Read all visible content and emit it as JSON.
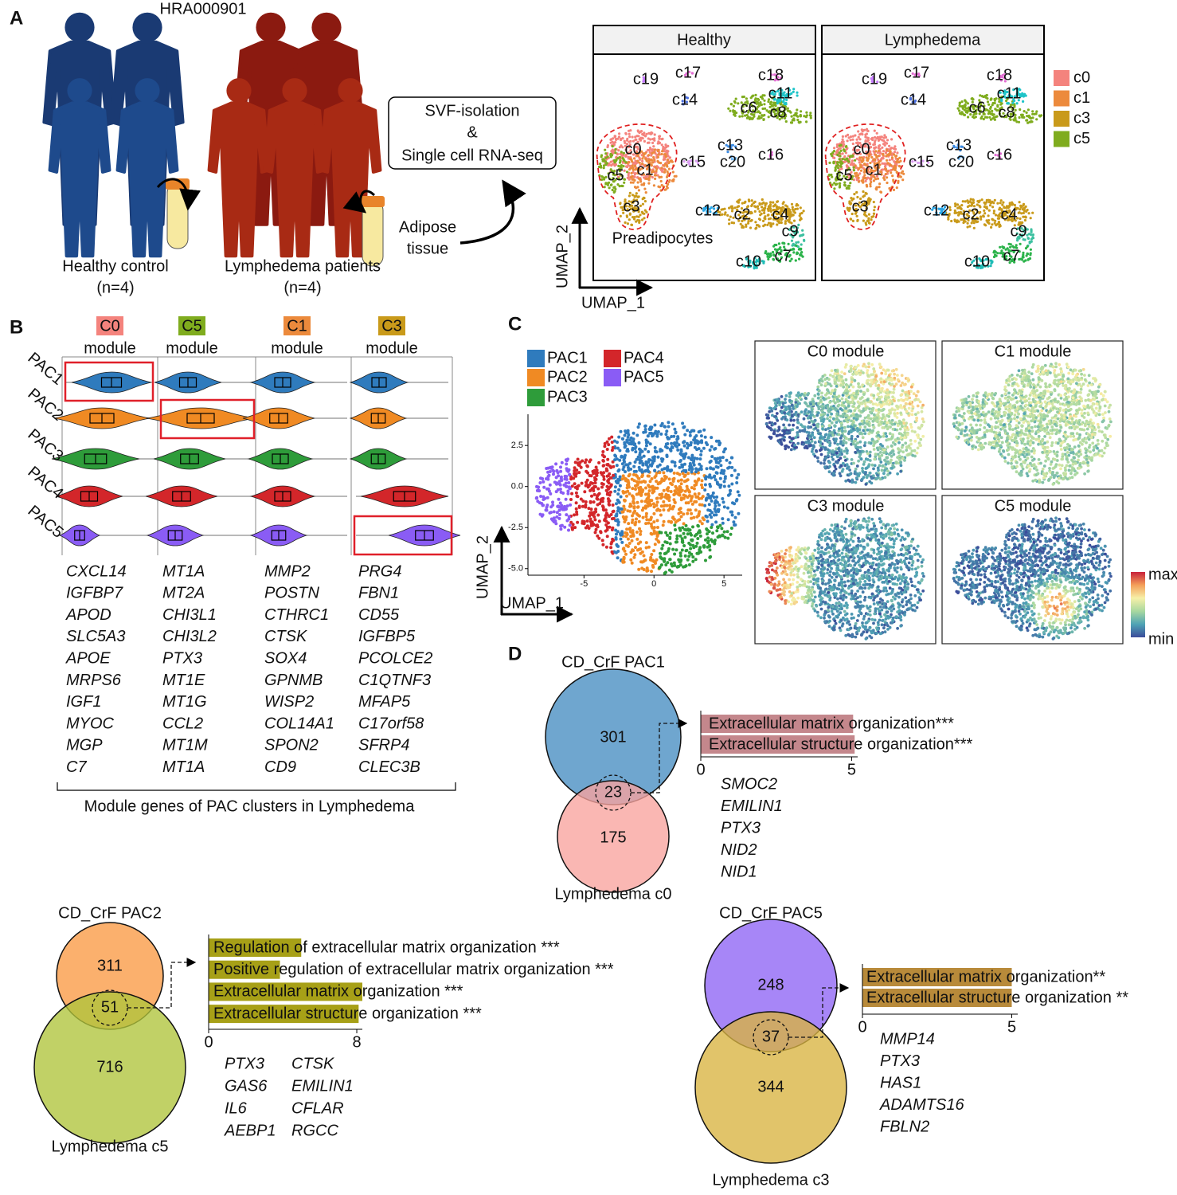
{
  "panel_a": {
    "label": "A",
    "dataset": "HRA000901",
    "groups": [
      {
        "name": "Healthy control",
        "n": "(n=4)"
      },
      {
        "name": "Lymphedema patients",
        "n": "(n=4)"
      }
    ],
    "tissue": [
      "Adipose",
      "tissue"
    ],
    "method": [
      "SVF-isolation",
      "&",
      "Single cell RNA-seq"
    ],
    "umap": {
      "facets": [
        "Healthy",
        "Lymphedema"
      ],
      "clusters": [
        "c19",
        "c17",
        "c14",
        "c18",
        "c11",
        "c6",
        "c8",
        "c0",
        "c13",
        "c16",
        "c1",
        "c5",
        "c15",
        "c20",
        "c12",
        "c2",
        "c4",
        "c3",
        "c9",
        "c7",
        "c10"
      ],
      "highlight": "Preadipocytes",
      "x_label": "UMAP_1",
      "y_label": "UMAP_2",
      "legend": [
        {
          "name": "c0",
          "color": "#f4837d"
        },
        {
          "name": "c1",
          "color": "#ec8a3c"
        },
        {
          "name": "c3",
          "color": "#c99a1a"
        },
        {
          "name": "c5",
          "color": "#7fac1e"
        }
      ]
    }
  },
  "panel_b": {
    "label": "B",
    "suffix": "module",
    "rows": [
      "PAC1",
      "PAC2",
      "PAC3",
      "PAC4",
      "PAC5"
    ],
    "modules": [
      {
        "name": "C0",
        "color": "#f4837d",
        "genes": [
          "CXCL14",
          "IGFBP7",
          "APOD",
          "SLC5A3",
          "APOE",
          "MRPS6",
          "IGF1",
          "MYOC",
          "MGP",
          "C7"
        ]
      },
      {
        "name": "C5",
        "color": "#7fac1e",
        "genes": [
          "MT1A",
          "MT2A",
          "CHI3L1",
          "CHI3L2",
          "PTX3",
          "MT1E",
          "MT1G",
          "CCL2",
          "MT1M",
          "MT1A"
        ]
      },
      {
        "name": "C1",
        "color": "#ec8a3c",
        "genes": [
          "MMP2",
          "POSTN",
          "CTHRC1",
          "CTSK",
          "SOX4",
          "GPNMB",
          "WISP2",
          "COL14A1",
          "SPON2",
          "CD9"
        ]
      },
      {
        "name": "C3",
        "color": "#c99a1a",
        "genes": [
          "PRG4",
          "FBN1",
          "CD55",
          "IGFBP5",
          "PCOLCE2",
          "C1QTNF3",
          "MFAP5",
          "C17orf58",
          "SFRP4",
          "CLEC3B"
        ]
      }
    ],
    "caption": "Module genes of PAC clusters in Lymphedema"
  },
  "panel_c": {
    "label": "C",
    "legend": [
      {
        "name": "PAC1",
        "color": "#2f7bbd"
      },
      {
        "name": "PAC2",
        "color": "#f08a23"
      },
      {
        "name": "PAC3",
        "color": "#2e9c3a"
      },
      {
        "name": "PAC4",
        "color": "#d3262a"
      },
      {
        "name": "PAC5",
        "color": "#8a5cf5"
      }
    ],
    "scatter": {
      "type": "scatter",
      "x_label": "UMAP_1",
      "y_label": "UMAP_2",
      "xlim": [
        -9,
        6.3
      ],
      "ylim": [
        -5.4,
        4.4
      ],
      "xticks": [
        -5,
        0,
        5
      ],
      "yticks": [
        2.5,
        {
          "value": 0,
          "label": "0.0"
        },
        -2.5,
        {
          "value": -5,
          "label": "-5.0"
        }
      ]
    },
    "features": [
      "C0 module",
      "C1 module",
      "C3 module",
      "C5 module"
    ],
    "colorbar": {
      "max": "max",
      "min": "min"
    }
  },
  "panel_d": {
    "label": "D",
    "venns": [
      {
        "top": "CD_CrF PAC1",
        "top_color": "#6fa6cf",
        "bottom": "Lymphedema c0",
        "bottom_color": "#f8a39e",
        "counts": {
          "top": 301,
          "overlap": 23,
          "bottom": 175
        },
        "enrichment": {
          "type": "bar",
          "terms": [
            "Extracellular matrix organization***",
            "Extracellular structure organization***"
          ],
          "values": [
            5.05,
            5.1
          ],
          "color": "#c4878c",
          "xlim": [
            0,
            5.2
          ],
          "xticks": [
            0,
            5
          ]
        },
        "genes": [
          [
            "SMOC2",
            "EMILIN1",
            "PTX3",
            "NID2",
            "NID1"
          ]
        ]
      },
      {
        "top": "CD_CrF PAC2",
        "top_color": "#fbb06d",
        "bottom": "Lymphedema c5",
        "bottom_color": "#afc43b",
        "counts": {
          "top": 311,
          "overlap": 51,
          "bottom": 716
        },
        "enrichment": {
          "type": "bar",
          "terms": [
            "Regulation of extracellular matrix organization ***",
            "Positive regulation of extracellular matrix organization ***",
            "Extracellular matrix organization ***",
            "Extracellular structure organization ***"
          ],
          "values": [
            5.0,
            3.85,
            8.3,
            8.1
          ],
          "color": "#a7a017",
          "xlim": [
            0,
            8.3
          ],
          "xticks": [
            0,
            8
          ]
        },
        "genes": [
          [
            "PTX3",
            "GAS6",
            "IL6",
            "AEBP1"
          ],
          [
            "CTSK",
            "EMILIN1",
            "CFLAR",
            "RGCC"
          ]
        ]
      },
      {
        "top": "CD_CrF PAC5",
        "top_color": "#a786f7",
        "bottom": "Lymphedema c3",
        "bottom_color": "#d9b440",
        "counts": {
          "top": 248,
          "overlap": 37,
          "bottom": 344
        },
        "enrichment": {
          "type": "bar",
          "terms": [
            "Extracellular matrix organization**",
            "Extracellular structure organization **"
          ],
          "values": [
            5.0,
            5.0
          ],
          "color": "#b88a3a",
          "xlim": [
            0,
            5.2
          ],
          "xticks": [
            0,
            5
          ]
        },
        "genes": [
          [
            "MMP14",
            "PTX3",
            "HAS1",
            "ADAMTS16",
            "FBLN2"
          ]
        ]
      }
    ]
  }
}
